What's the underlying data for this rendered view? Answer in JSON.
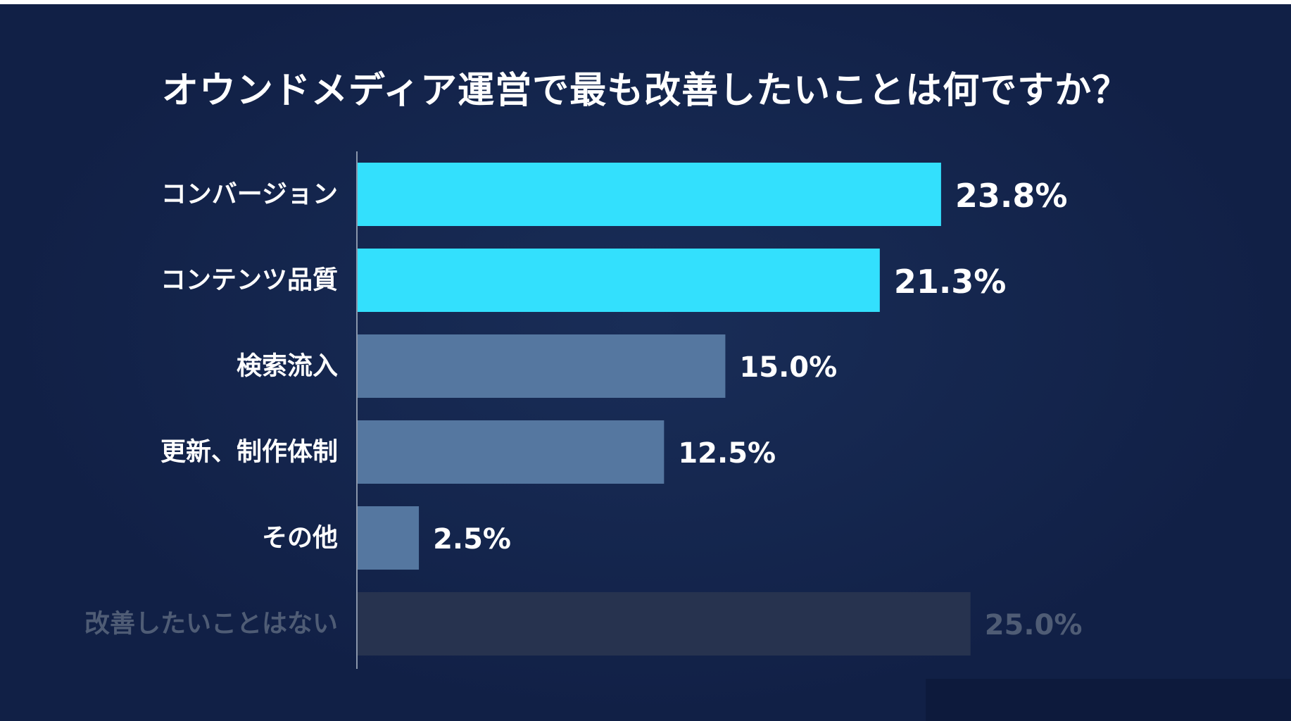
{
  "chart_data": {
    "type": "bar",
    "orientation": "horizontal",
    "title": "オウンドメディア運営で最も改善したいことは何ですか？",
    "categories": [
      "コンバージョン",
      "コンテンツ品質",
      "検索流入",
      "更新、制作体制",
      "その他",
      "改善したいことはない"
    ],
    "values": [
      23.8,
      21.3,
      15.0,
      12.5,
      2.5,
      25.0
    ],
    "value_labels": [
      "23.8%",
      "21.3%",
      "15.0%",
      "12.5%",
      "2.5%",
      "25.0%"
    ],
    "unit": "%",
    "xlim": [
      0,
      29
    ],
    "grid": false,
    "legend": "none",
    "colors": {
      "background": "#112046",
      "highlight_bar": "#33e0fd",
      "default_bar": "#5577a0",
      "muted_bar": "#27334f",
      "label": "#ffffff",
      "muted_label": "#4f5c75",
      "axis": "#8a96ab"
    },
    "emphasis": [
      "highlight",
      "highlight",
      "default",
      "default",
      "default",
      "muted"
    ]
  }
}
